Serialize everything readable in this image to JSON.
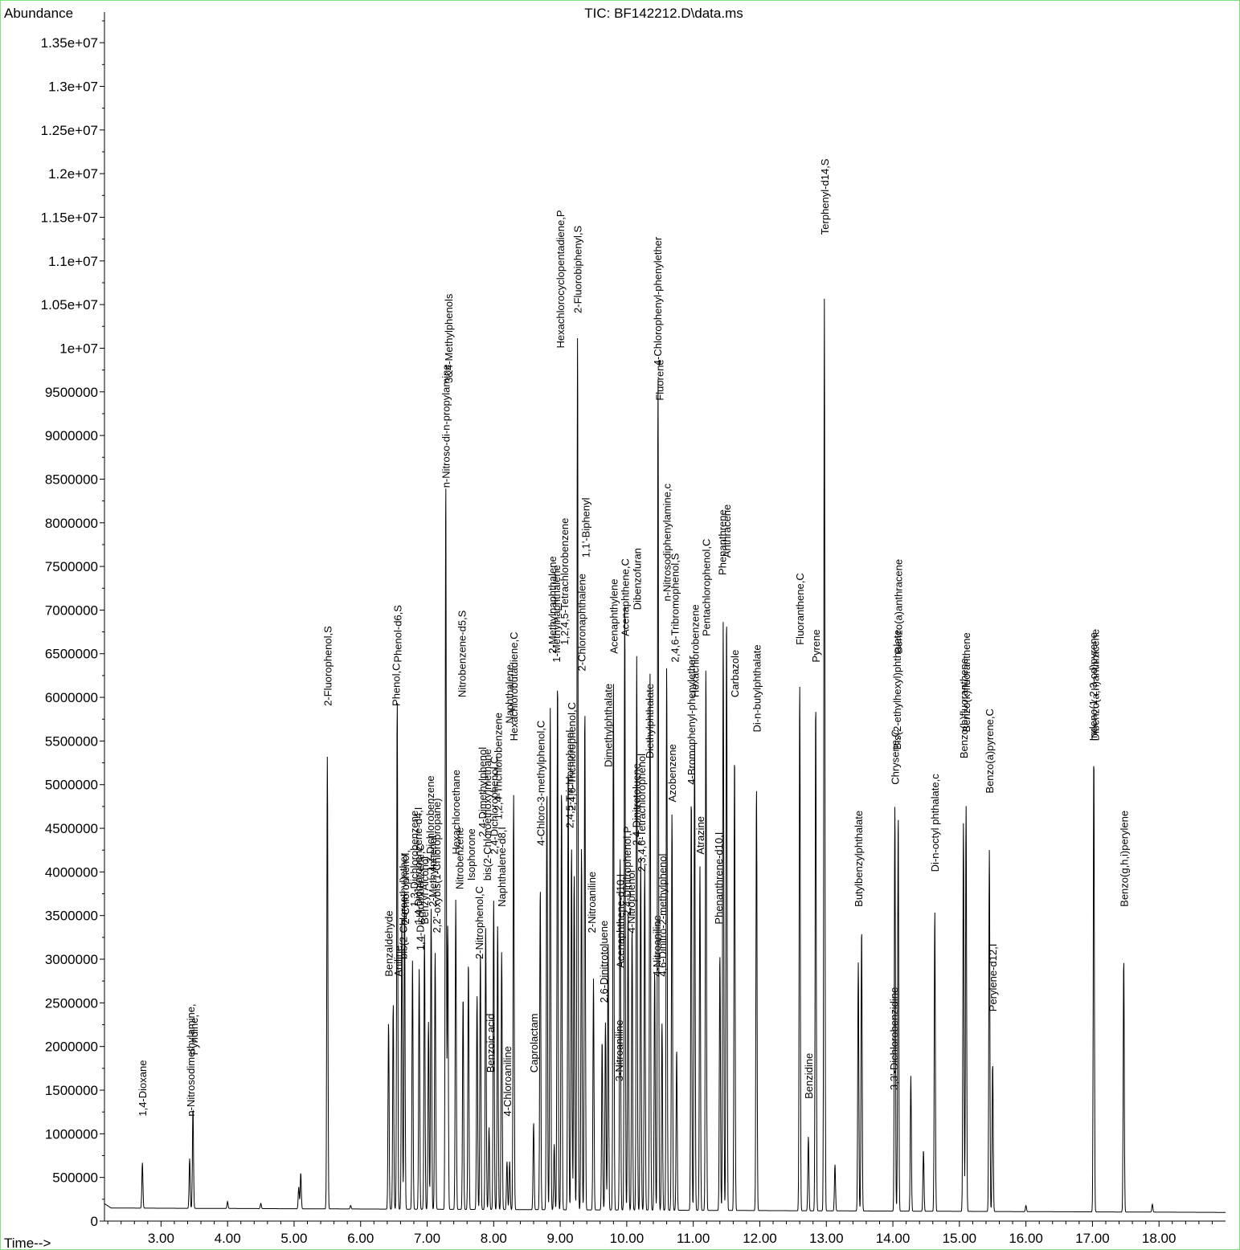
{
  "chart_data": {
    "type": "line",
    "title": "TIC: BF142212.D\\data.ms",
    "ylabel": "Abundance",
    "xlabel": "Time-->",
    "xlim": [
      2.15,
      19.0
    ],
    "ylim": [
      0,
      13800000
    ],
    "x_ticks": [
      3.0,
      4.0,
      5.0,
      6.0,
      7.0,
      8.0,
      9.0,
      10.0,
      11.0,
      12.0,
      13.0,
      14.0,
      15.0,
      16.0,
      17.0,
      18.0
    ],
    "x_tick_labels": [
      "3.00",
      "4.00",
      "5.00",
      "6.00",
      "7.00",
      "8.00",
      "9.00",
      "10.00",
      "11.00",
      "12.00",
      "13.00",
      "14.00",
      "15.00",
      "16.00",
      "17.00",
      "18.00"
    ],
    "y_ticks": [
      0,
      500000,
      1000000,
      1500000,
      2000000,
      2500000,
      3000000,
      3500000,
      4000000,
      4500000,
      5000000,
      5500000,
      6000000,
      6500000,
      7000000,
      7500000,
      8000000,
      8500000,
      9000000,
      9500000,
      10000000,
      10500000,
      11000000,
      11500000,
      12000000,
      12500000,
      13000000,
      13500000
    ],
    "y_tick_labels": [
      "0",
      "500000",
      "1000000",
      "1500000",
      "2000000",
      "2500000",
      "3000000",
      "3500000",
      "4000000",
      "4500000",
      "5000000",
      "5500000",
      "6000000",
      "6500000",
      "7000000",
      "7500000",
      "8000000",
      "8500000",
      "9000000",
      "9500000",
      "1e+07",
      "1.05e+07",
      "1.1e+07",
      "1.15e+07",
      "1.2e+07",
      "1.25e+07",
      "1.3e+07",
      "1.35e+07"
    ],
    "baseline": 150000,
    "peaks": [
      {
        "x": 2.72,
        "y": 670000
      },
      {
        "x": 3.43,
        "y": 720000
      },
      {
        "x": 3.48,
        "y": 1300000
      },
      {
        "x": 4.0,
        "y": 230000
      },
      {
        "x": 4.5,
        "y": 210000
      },
      {
        "x": 5.07,
        "y": 400000
      },
      {
        "x": 5.1,
        "y": 560000
      },
      {
        "x": 5.5,
        "y": 5330000
      },
      {
        "x": 5.85,
        "y": 190000
      },
      {
        "x": 6.42,
        "y": 2300000
      },
      {
        "x": 6.49,
        "y": 2500000
      },
      {
        "x": 6.55,
        "y": 6000000
      },
      {
        "x": 6.62,
        "y": 3500000
      },
      {
        "x": 6.66,
        "y": 3800000
      },
      {
        "x": 6.78,
        "y": 3000000
      },
      {
        "x": 6.88,
        "y": 2900000
      },
      {
        "x": 6.96,
        "y": 3300000
      },
      {
        "x": 7.02,
        "y": 2300000
      },
      {
        "x": 7.06,
        "y": 3600000
      },
      {
        "x": 7.12,
        "y": 3100000
      },
      {
        "x": 7.28,
        "y": 8500000
      },
      {
        "x": 7.31,
        "y": 3400000
      },
      {
        "x": 7.43,
        "y": 3700000
      },
      {
        "x": 7.54,
        "y": 2600000
      },
      {
        "x": 7.62,
        "y": 3000000
      },
      {
        "x": 7.75,
        "y": 2600000
      },
      {
        "x": 7.8,
        "y": 3100000
      },
      {
        "x": 7.88,
        "y": 3400000
      },
      {
        "x": 7.93,
        "y": 1100000
      },
      {
        "x": 8.0,
        "y": 3700000
      },
      {
        "x": 8.06,
        "y": 3400000
      },
      {
        "x": 8.12,
        "y": 3100000
      },
      {
        "x": 8.2,
        "y": 700000
      },
      {
        "x": 8.24,
        "y": 700000
      },
      {
        "x": 8.3,
        "y": 4900000
      },
      {
        "x": 8.6,
        "y": 1150000
      },
      {
        "x": 8.7,
        "y": 3850000
      },
      {
        "x": 8.8,
        "y": 5000000
      },
      {
        "x": 8.85,
        "y": 5900000
      },
      {
        "x": 8.91,
        "y": 900000
      },
      {
        "x": 8.96,
        "y": 6250000
      },
      {
        "x": 9.02,
        "y": 5000000
      },
      {
        "x": 9.12,
        "y": 5200000
      },
      {
        "x": 9.17,
        "y": 4300000
      },
      {
        "x": 9.21,
        "y": 4000000
      },
      {
        "x": 9.26,
        "y": 10200000
      },
      {
        "x": 9.32,
        "y": 4300000
      },
      {
        "x": 9.37,
        "y": 5900000
      },
      {
        "x": 9.5,
        "y": 2800000
      },
      {
        "x": 9.63,
        "y": 2100000
      },
      {
        "x": 9.68,
        "y": 2300000
      },
      {
        "x": 9.72,
        "y": 3200000
      },
      {
        "x": 9.8,
        "y": 6200000
      },
      {
        "x": 9.9,
        "y": 4200000
      },
      {
        "x": 9.97,
        "y": 7100000
      },
      {
        "x": 10.02,
        "y": 3600000
      },
      {
        "x": 10.08,
        "y": 3400000
      },
      {
        "x": 10.15,
        "y": 6500000
      },
      {
        "x": 10.21,
        "y": 4200000
      },
      {
        "x": 10.27,
        "y": 4100000
      },
      {
        "x": 10.35,
        "y": 6300000
      },
      {
        "x": 10.42,
        "y": 2900000
      },
      {
        "x": 10.47,
        "y": 9700000
      },
      {
        "x": 10.53,
        "y": 2300000
      },
      {
        "x": 10.6,
        "y": 6400000
      },
      {
        "x": 10.68,
        "y": 4700000
      },
      {
        "x": 10.75,
        "y": 2000000
      },
      {
        "x": 10.97,
        "y": 4900000
      },
      {
        "x": 11.02,
        "y": 5500000
      },
      {
        "x": 11.1,
        "y": 4100000
      },
      {
        "x": 11.19,
        "y": 6400000
      },
      {
        "x": 11.4,
        "y": 3100000
      },
      {
        "x": 11.45,
        "y": 6900000
      },
      {
        "x": 11.5,
        "y": 7000000
      },
      {
        "x": 11.62,
        "y": 5400000
      },
      {
        "x": 11.95,
        "y": 5000000
      },
      {
        "x": 12.6,
        "y": 6200000
      },
      {
        "x": 12.73,
        "y": 1000000
      },
      {
        "x": 12.84,
        "y": 6000000
      },
      {
        "x": 12.97,
        "y": 10600000
      },
      {
        "x": 13.13,
        "y": 680000
      },
      {
        "x": 13.48,
        "y": 3000000
      },
      {
        "x": 13.53,
        "y": 3400000
      },
      {
        "x": 14.03,
        "y": 4800000
      },
      {
        "x": 14.08,
        "y": 4700000
      },
      {
        "x": 14.27,
        "y": 1700000
      },
      {
        "x": 14.46,
        "y": 850000
      },
      {
        "x": 14.63,
        "y": 3600000
      },
      {
        "x": 15.06,
        "y": 4600000
      },
      {
        "x": 15.1,
        "y": 4800000
      },
      {
        "x": 15.45,
        "y": 4300000
      },
      {
        "x": 15.5,
        "y": 1850000
      },
      {
        "x": 16.0,
        "y": 220000
      },
      {
        "x": 17.02,
        "y": 5400000
      },
      {
        "x": 17.47,
        "y": 3050000
      },
      {
        "x": 17.9,
        "y": 240000
      }
    ],
    "annotations": [
      {
        "text": "1,4-Dioxane",
        "x": 2.72,
        "y": 1200000
      },
      {
        "text": "n-Nitrosodimethylamine,",
        "x": 3.44,
        "y": 1200000
      },
      {
        "text": "Pyridine,",
        "x": 3.49,
        "y": 1900000
      },
      {
        "text": "2-Fluorophenol,S",
        "x": 5.5,
        "y": 5900000
      },
      {
        "text": "Benzaldehyde",
        "x": 6.42,
        "y": 2800000
      },
      {
        "text": "Phenol-d6,S",
        "x": 6.55,
        "y": 6400000
      },
      {
        "text": "Phenol,C",
        "x": 6.53,
        "y": 5900000
      },
      {
        "text": "Aniline",
        "x": 6.56,
        "y": 2800000
      },
      {
        "text": "bis(2-Chloroethyl)ether",
        "x": 6.64,
        "y": 3000000
      },
      {
        "text": "2-Chlorophenol,",
        "x": 6.67,
        "y": 3400000
      },
      {
        "text": "1,3-Dichlorobenzene",
        "x": 6.8,
        "y": 3600000
      },
      {
        "text": "1,4-Dichlorobenzene-d4,I",
        "x": 6.86,
        "y": 3400000
      },
      {
        "text": "1,4-Dichlorobenzene,C",
        "x": 6.89,
        "y": 3100000
      },
      {
        "text": "Benzyl Alcohol",
        "x": 6.96,
        "y": 3400000
      },
      {
        "text": "1,2-Dichlorobenzene",
        "x": 7.04,
        "y": 4000000
      },
      {
        "text": "2-Methylphenol",
        "x": 7.08,
        "y": 3600000
      },
      {
        "text": "2,2'-oxybis(1-Chloropropane)",
        "x": 7.14,
        "y": 3300000
      },
      {
        "text": "n-Nitroso-di-n-propylamine",
        "x": 7.28,
        "y": 8400000
      },
      {
        "text": "3&4-Methylphenols",
        "x": 7.32,
        "y": 9600000
      },
      {
        "text": "Hexachloroethane",
        "x": 7.43,
        "y": 4200000
      },
      {
        "text": "Nitrobenzene-d5,S",
        "x": 7.52,
        "y": 6000000
      },
      {
        "text": "Nitrobenzene",
        "x": 7.48,
        "y": 3800000
      },
      {
        "text": "Isophorone",
        "x": 7.66,
        "y": 3900000
      },
      {
        "text": "2-Nitrophenol,C",
        "x": 7.78,
        "y": 3000000
      },
      {
        "text": "2,4-Dimethylphenol",
        "x": 7.83,
        "y": 4400000
      },
      {
        "text": "bis(2-Chloroethoxy)methane",
        "x": 7.9,
        "y": 3900000
      },
      {
        "text": "Benzoic acid",
        "x": 7.95,
        "y": 1700000
      },
      {
        "text": "2,4-Dichlorophenol,C",
        "x": 8.0,
        "y": 4200000
      },
      {
        "text": "1,2,4-Trichlorobenzene",
        "x": 8.06,
        "y": 4600000
      },
      {
        "text": "Naphthalene-d8,I",
        "x": 8.12,
        "y": 3600000
      },
      {
        "text": "4-Chloroaniline",
        "x": 8.2,
        "y": 1200000
      },
      {
        "text": "Naphthalene",
        "x": 8.23,
        "y": 5700000
      },
      {
        "text": "Hexachlorobutadiene,C",
        "x": 8.3,
        "y": 5500000
      },
      {
        "text": "Caprolactam",
        "x": 8.6,
        "y": 1700000
      },
      {
        "text": "4-Chloro-3-methylphenol,C",
        "x": 8.7,
        "y": 4300000
      },
      {
        "text": "2-Methylnaphthalene",
        "x": 8.88,
        "y": 6500000
      },
      {
        "text": "1-Methylnaphthalene",
        "x": 8.94,
        "y": 6400000
      },
      {
        "text": "Hexachlorocyclopentadiene,P",
        "x": 9.0,
        "y": 10000000
      },
      {
        "text": "1,2,4,5-Tetrachlorobenzene",
        "x": 9.06,
        "y": 6600000
      },
      {
        "text": "2,4,5-Trichlorophenol",
        "x": 9.14,
        "y": 4500000
      },
      {
        "text": "2,4,6-Trichlorophenol,C",
        "x": 9.17,
        "y": 4700000
      },
      {
        "text": "2-Fluorobiphenyl,S",
        "x": 9.26,
        "y": 10400000
      },
      {
        "text": "2-Chloronaphthalene",
        "x": 9.32,
        "y": 6300000
      },
      {
        "text": "1,1'-Biphenyl",
        "x": 9.38,
        "y": 7600000
      },
      {
        "text": "2-Nitroaniline",
        "x": 9.47,
        "y": 3300000
      },
      {
        "text": "2,6-Dinitrotoluene",
        "x": 9.65,
        "y": 2500000
      },
      {
        "text": "Dimethylphthalate",
        "x": 9.72,
        "y": 5200000
      },
      {
        "text": "Acenaphthylene",
        "x": 9.8,
        "y": 6500000
      },
      {
        "text": "3-Nitroaniline",
        "x": 9.88,
        "y": 1600000
      },
      {
        "text": "Acenaphthene-d10,I",
        "x": 9.9,
        "y": 2900000
      },
      {
        "text": "Acenaphthene,C",
        "x": 9.97,
        "y": 6700000
      },
      {
        "text": "2,4-Dinitrophenol,P",
        "x": 10.0,
        "y": 3500000
      },
      {
        "text": "4-Nitrophenol",
        "x": 10.06,
        "y": 3300000
      },
      {
        "text": "2,4-Dinitrotoluene",
        "x": 10.14,
        "y": 4300000
      },
      {
        "text": "Dibenzofuran",
        "x": 10.15,
        "y": 7000000
      },
      {
        "text": "2,3,4,6-Tetrachlorophenol",
        "x": 10.22,
        "y": 4000000
      },
      {
        "text": "Diethylphthalate",
        "x": 10.34,
        "y": 5300000
      },
      {
        "text": "4-Nitroaniline",
        "x": 10.45,
        "y": 2800000
      },
      {
        "text": "4-Chlorophenyl-phenylether",
        "x": 10.46,
        "y": 9800000
      },
      {
        "text": "Fluorene",
        "x": 10.49,
        "y": 9400000
      },
      {
        "text": "4,6-Dinitro-2-methylphenol",
        "x": 10.53,
        "y": 2800000
      },
      {
        "text": "n-Nitrosodiphenylamine,c",
        "x": 10.6,
        "y": 7100000
      },
      {
        "text": "Azobenzene",
        "x": 10.68,
        "y": 4800000
      },
      {
        "text": "2,4,6-Tribromophenol,S",
        "x": 10.72,
        "y": 6400000
      },
      {
        "text": "4-Bromophenyl-phenylether",
        "x": 10.97,
        "y": 5000000
      },
      {
        "text": "Hexachlorobenzene",
        "x": 11.02,
        "y": 6000000
      },
      {
        "text": "Atrazine",
        "x": 11.1,
        "y": 4200000
      },
      {
        "text": "Pentachlorophenol,C",
        "x": 11.19,
        "y": 6700000
      },
      {
        "text": "Phenanthrene-d10,I",
        "x": 11.38,
        "y": 3400000
      },
      {
        "text": "Phenanthrene",
        "x": 11.43,
        "y": 7400000
      },
      {
        "text": "Anthracene",
        "x": 11.5,
        "y": 7600000
      },
      {
        "text": "Carbazole",
        "x": 11.62,
        "y": 6000000
      },
      {
        "text": "Di-n-butylphthalate",
        "x": 11.95,
        "y": 5600000
      },
      {
        "text": "Benzidine",
        "x": 12.73,
        "y": 1400000
      },
      {
        "text": "Fluoranthene,C",
        "x": 12.6,
        "y": 6600000
      },
      {
        "text": "Pyrene",
        "x": 12.84,
        "y": 6400000
      },
      {
        "text": "Terphenyl-d14,S",
        "x": 12.97,
        "y": 11300000
      },
      {
        "text": "Butylbenzylphthalate",
        "x": 13.48,
        "y": 3600000
      },
      {
        "text": "3,3'-Dichlorobenzidine",
        "x": 14.01,
        "y": 1500000
      },
      {
        "text": "Chrysene,C",
        "x": 14.03,
        "y": 5000000
      },
      {
        "text": "Bis(2-ethylhexyl)phthalate",
        "x": 14.06,
        "y": 5400000
      },
      {
        "text": "Benzo(a)anthracene",
        "x": 14.08,
        "y": 6500000
      },
      {
        "text": "Di-n-octyl phthalate,c",
        "x": 14.63,
        "y": 4000000
      },
      {
        "text": "Benzo(b)fluoranthene",
        "x": 15.06,
        "y": 5300000
      },
      {
        "text": "Benzo(k)fluoranthene",
        "x": 15.1,
        "y": 5600000
      },
      {
        "text": "Benzo(a)pyrene,C",
        "x": 15.45,
        "y": 4900000
      },
      {
        "text": "Perylene-d12,I",
        "x": 15.5,
        "y": 2400000
      },
      {
        "text": "Indeno(1,2,3-cd)pyrene",
        "x": 17.01,
        "y": 5500000
      },
      {
        "text": "Dibenzo(a,h)anthracene",
        "x": 17.04,
        "y": 5500000
      },
      {
        "text": "Benzo(g,h,i)perylene",
        "x": 17.47,
        "y": 3600000
      }
    ]
  }
}
